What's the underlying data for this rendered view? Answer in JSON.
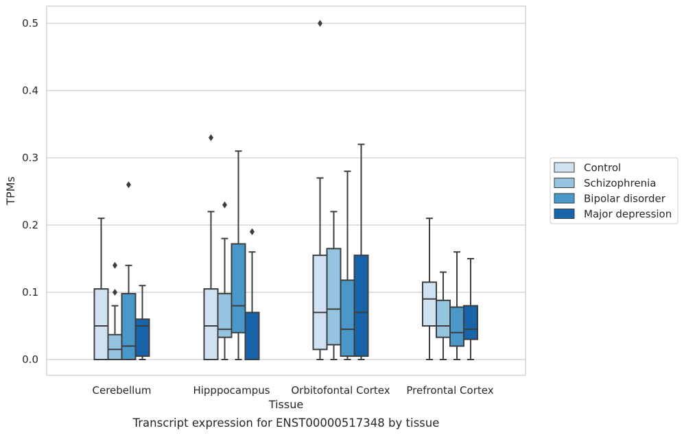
{
  "chart_data": {
    "type": "boxplot",
    "caption": "Transcript expression for ENST00000517348 by tissue",
    "xlabel": "Tissue",
    "ylabel": "TPMs",
    "ylim": [
      -0.025,
      0.525
    ],
    "yticks": [
      0.0,
      0.1,
      0.2,
      0.3,
      0.4,
      0.5
    ],
    "ytick_labels": [
      "0.0",
      "0.1",
      "0.2",
      "0.3",
      "0.4",
      "0.5"
    ],
    "grid": true,
    "legend_position": "right",
    "categories": [
      "Cerebellum",
      "Hipppocampus",
      "Orbitofontal Cortex",
      "Prefrontal Cortex"
    ],
    "series": [
      {
        "name": "Control",
        "color": "#d0e1f2",
        "boxes": [
          {
            "whislo": 0.0,
            "q1": 0.0,
            "med": 0.05,
            "q3": 0.105,
            "whishi": 0.21,
            "fliers": []
          },
          {
            "whislo": 0.0,
            "q1": 0.0,
            "med": 0.05,
            "q3": 0.105,
            "whishi": 0.22,
            "fliers": [
              0.33
            ]
          },
          {
            "whislo": 0.0,
            "q1": 0.015,
            "med": 0.07,
            "q3": 0.155,
            "whishi": 0.27,
            "fliers": [
              0.5
            ]
          },
          {
            "whislo": 0.0,
            "q1": 0.05,
            "med": 0.09,
            "q3": 0.115,
            "whishi": 0.21,
            "fliers": []
          }
        ]
      },
      {
        "name": "Schizophrenia",
        "color": "#94c4df",
        "boxes": [
          {
            "whislo": 0.0,
            "q1": 0.0,
            "med": 0.015,
            "q3": 0.037,
            "whishi": 0.08,
            "fliers": [
              0.1,
              0.14
            ]
          },
          {
            "whislo": 0.0,
            "q1": 0.033,
            "med": 0.045,
            "q3": 0.098,
            "whishi": 0.18,
            "fliers": [
              0.23
            ]
          },
          {
            "whislo": 0.0,
            "q1": 0.022,
            "med": 0.075,
            "q3": 0.165,
            "whishi": 0.22,
            "fliers": []
          },
          {
            "whislo": 0.0,
            "q1": 0.033,
            "med": 0.05,
            "q3": 0.088,
            "whishi": 0.13,
            "fliers": []
          }
        ]
      },
      {
        "name": "Bipolar disorder",
        "color": "#4a98c9",
        "boxes": [
          {
            "whislo": 0.0,
            "q1": 0.0,
            "med": 0.02,
            "q3": 0.098,
            "whishi": 0.14,
            "fliers": [
              0.26
            ]
          },
          {
            "whislo": 0.0,
            "q1": 0.04,
            "med": 0.08,
            "q3": 0.172,
            "whishi": 0.31,
            "fliers": []
          },
          {
            "whislo": 0.0,
            "q1": 0.005,
            "med": 0.045,
            "q3": 0.118,
            "whishi": 0.28,
            "fliers": []
          },
          {
            "whislo": 0.0,
            "q1": 0.02,
            "med": 0.04,
            "q3": 0.078,
            "whishi": 0.16,
            "fliers": []
          }
        ]
      },
      {
        "name": "Major depression",
        "color": "#1764ab",
        "boxes": [
          {
            "whislo": 0.0,
            "q1": 0.005,
            "med": 0.05,
            "q3": 0.06,
            "whishi": 0.11,
            "fliers": []
          },
          {
            "whislo": 0.0,
            "q1": 0.0,
            "med": 0.0,
            "q3": 0.07,
            "whishi": 0.16,
            "fliers": [
              0.19
            ]
          },
          {
            "whislo": 0.0,
            "q1": 0.005,
            "med": 0.07,
            "q3": 0.155,
            "whishi": 0.32,
            "fliers": []
          },
          {
            "whislo": 0.0,
            "q1": 0.03,
            "med": 0.045,
            "q3": 0.08,
            "whishi": 0.15,
            "fliers": []
          }
        ]
      }
    ]
  }
}
